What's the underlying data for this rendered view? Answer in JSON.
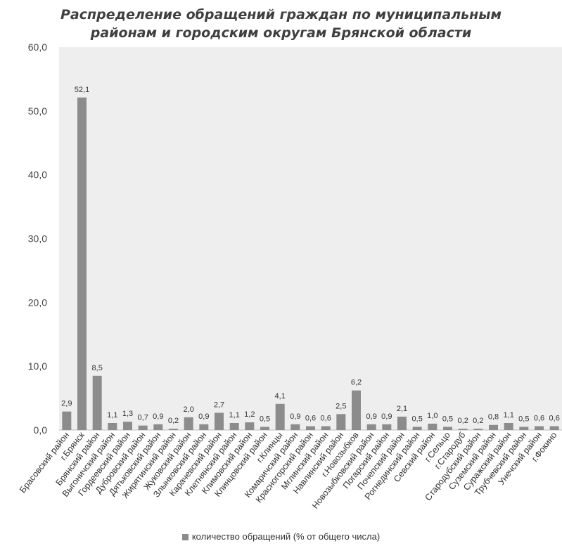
{
  "chart_data": {
    "type": "bar",
    "title": "Распределение обращений граждан по муниципальным районам и городским округам Брянской области",
    "title_lines": [
      "Распределение обращений граждан по муниципальным",
      "районам и городским округам Брянской области"
    ],
    "categories": [
      "Брасовский район",
      "г.Брянск",
      "Брянский район",
      "Выгоничский район",
      "Гордеевский район",
      "Дубровский район",
      "Дятьковский район",
      "Жирятинский район",
      "Жуковский район",
      "Злынковский район",
      "Карачевский район",
      "Клетнянский район",
      "Климовский район",
      "Клинцовский район",
      "г.Клинцы",
      "Комаричский район",
      "Красногорский район",
      "Мглинский район",
      "Навлинский район",
      "г.Новозыбков",
      "Новозыбковский район",
      "Погарский район",
      "Почепский район",
      "Рогнединский район",
      "Севский район",
      "г.Сельцо",
      "г.Стародуб",
      "Стародубский район",
      "Суземский район",
      "Суражский район",
      "Трубчевский район",
      "Унечский район",
      "г.Фокино"
    ],
    "series": [
      {
        "name": "количество обращений (% от общего числа)",
        "values": [
          2.9,
          52.1,
          8.5,
          1.1,
          1.3,
          0.7,
          0.9,
          0.2,
          2.0,
          0.9,
          2.7,
          1.1,
          1.2,
          0.5,
          4.1,
          0.9,
          0.6,
          0.6,
          2.5,
          6.2,
          0.9,
          0.9,
          2.1,
          0.5,
          1.0,
          0.5,
          0.2,
          0.2,
          0.8,
          1.1,
          0.5,
          0.6,
          0.6
        ],
        "labels": [
          "2,9",
          "52,1",
          "8,5",
          "1,1",
          "1,3",
          "0,7",
          "0,9",
          "0,2",
          "2,0",
          "0,9",
          "2,7",
          "1,1",
          "1,2",
          "0,5",
          "4,1",
          "0,9",
          "0,6",
          "0,6",
          "2,5",
          "6,2",
          "0,9",
          "0,9",
          "2,1",
          "0,5",
          "1,0",
          "0,5",
          "0,2",
          "0,2",
          "0,8",
          "1,1",
          "0,5",
          "0,6",
          "0,6"
        ]
      }
    ],
    "ylim": [
      0,
      60
    ],
    "yticks": [
      0,
      10,
      20,
      30,
      40,
      50,
      60
    ],
    "ytick_labels": [
      "0,0",
      "10,0",
      "20,0",
      "30,0",
      "40,0",
      "50,0",
      "60,0"
    ],
    "grid": false,
    "legend_position": "bottom",
    "bar_color": "#8c8c8c",
    "plot_background": "#eeeeee"
  }
}
